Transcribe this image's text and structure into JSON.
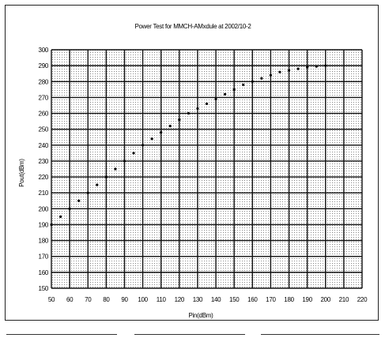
{
  "chart_data": {
    "type": "scatter",
    "title": "Power Test for MMCH-AMxdule at 2002/10-2",
    "xlabel": "Pin(dBm)",
    "ylabel": "Pout(dBm)",
    "xlim": [
      5.0,
      22.0
    ],
    "ylim": [
      15.0,
      30.0
    ],
    "x_ticks": [
      5.0,
      6.0,
      7.0,
      8.0,
      9.0,
      10.0,
      11.0,
      12.0,
      13.0,
      14.0,
      15.0,
      16.0,
      17.0,
      18.0,
      19.0,
      20.0,
      21.0,
      22.0
    ],
    "y_ticks": [
      15.0,
      16.0,
      17.0,
      18.0,
      19.0,
      20.0,
      21.0,
      22.0,
      23.0,
      24.0,
      25.0,
      26.0,
      27.0,
      28.0,
      29.0,
      30.0
    ],
    "x_tick_labels": [
      "50",
      "60",
      "70",
      "80",
      "90",
      "100",
      "110",
      "120",
      "130",
      "140",
      "150",
      "160",
      "170",
      "180",
      "190",
      "200",
      "210",
      "220"
    ],
    "y_tick_labels": [
      "150",
      "160",
      "170",
      "180",
      "190",
      "200",
      "210",
      "220",
      "230",
      "240",
      "250",
      "260",
      "270",
      "280",
      "290",
      "300"
    ],
    "grid": true,
    "series": [
      {
        "values_x": [
          5.0,
          5.5,
          6.0,
          6.5,
          7.0,
          7.5,
          8.0,
          8.5,
          9.0,
          9.5,
          10.0,
          10.5,
          11.0,
          11.5,
          12.0,
          12.5,
          13.0,
          13.5,
          14.0,
          14.5,
          15.0,
          15.5,
          16.0,
          16.5,
          17.0,
          17.5,
          18.0,
          18.5,
          19.0,
          19.5,
          20.0
        ],
        "values_y": [
          19.0,
          19.5,
          20.0,
          20.5,
          21.0,
          21.5,
          22.0,
          22.5,
          23.0,
          23.5,
          24.0,
          24.4,
          24.8,
          25.2,
          25.6,
          26.0,
          26.3,
          26.6,
          26.9,
          27.2,
          27.5,
          27.8,
          28.0,
          28.2,
          28.4,
          28.6,
          28.7,
          28.8,
          28.9,
          28.95,
          29.0
        ]
      }
    ]
  }
}
